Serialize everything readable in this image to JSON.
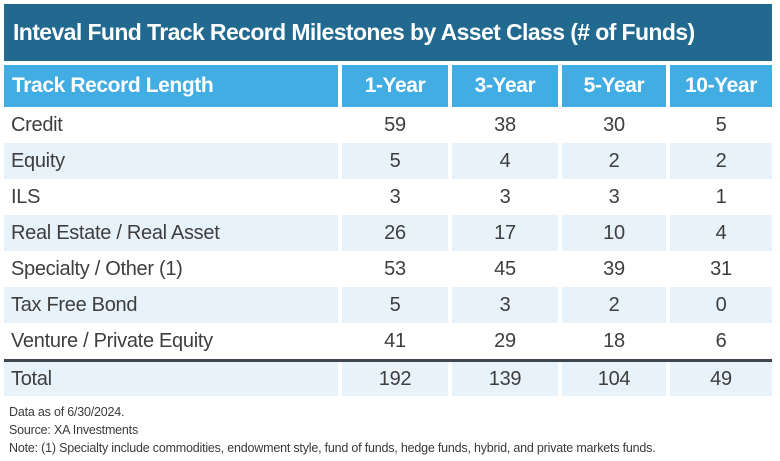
{
  "colors": {
    "title_bar_bg": "#21698F",
    "header_bg": "#41ADE2",
    "row_stripe_bg": "#E8F2FA",
    "divider": "#3F4650",
    "body_text": "#3E3E3E",
    "header_text": "#FFFFFF"
  },
  "chart_data": {
    "type": "table",
    "title": "Inteval Fund Track Record Milestones by Asset Class (# of Funds)",
    "row_header_label": "Track Record Length",
    "columns": [
      "1-Year",
      "3-Year",
      "5-Year",
      "10-Year"
    ],
    "rows": [
      {
        "label": "Credit",
        "values": [
          59,
          38,
          30,
          5
        ]
      },
      {
        "label": "Equity",
        "values": [
          5,
          4,
          2,
          2
        ]
      },
      {
        "label": "ILS",
        "values": [
          3,
          3,
          3,
          1
        ]
      },
      {
        "label": "Real Estate / Real Asset",
        "values": [
          26,
          17,
          10,
          4
        ]
      },
      {
        "label": "Specialty / Other (1)",
        "values": [
          53,
          45,
          39,
          31
        ]
      },
      {
        "label": "Tax Free Bond",
        "values": [
          5,
          3,
          2,
          0
        ]
      },
      {
        "label": "Venture / Private Equity",
        "values": [
          41,
          29,
          18,
          6
        ]
      }
    ],
    "total": {
      "label": "Total",
      "values": [
        192,
        139,
        104,
        49
      ]
    },
    "footnotes": [
      "Data as of 6/30/2024.",
      "Source: XA Investments",
      "Note: (1) Specialty include commodities, endowment style, fund of funds, hedge funds, hybrid, and private markets funds."
    ]
  }
}
